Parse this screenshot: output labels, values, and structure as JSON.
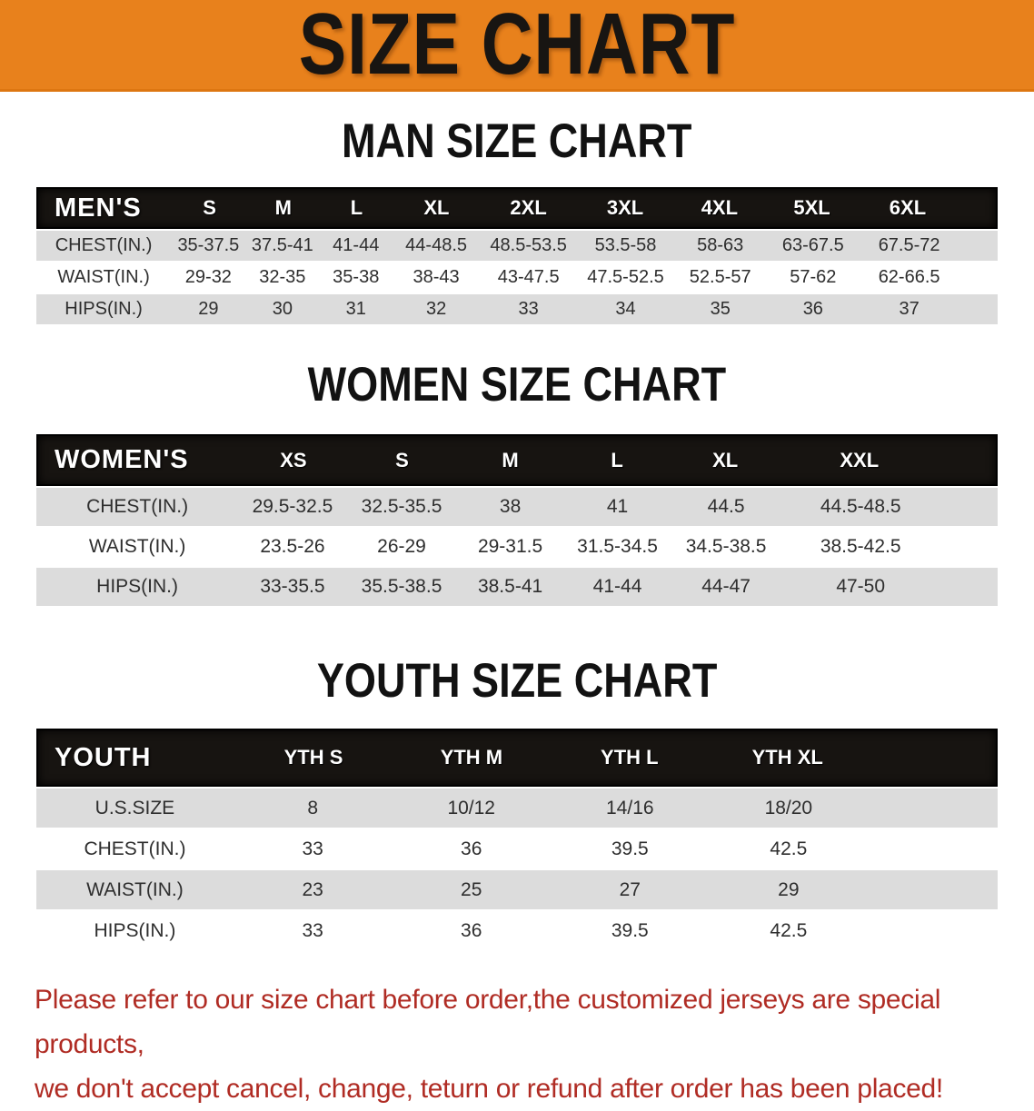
{
  "banner": {
    "title": "SIZE CHART"
  },
  "colors": {
    "banner_bg": "#e8811c",
    "table_header_bar": "#171411",
    "row_shade": "#dcdcdc",
    "footer_text": "#b02c24",
    "header_text": "#ffffff"
  },
  "men": {
    "heading": "MAN SIZE CHART",
    "table": {
      "header_label": "MEN'S",
      "columns": [
        "S",
        "M",
        "L",
        "XL",
        "2XL",
        "3XL",
        "4XL",
        "5XL",
        "6XL"
      ],
      "rows": [
        {
          "label": "CHEST(IN.)",
          "values": [
            "35-37.5",
            "37.5-41",
            "41-44",
            "44-48.5",
            "48.5-53.5",
            "53.5-58",
            "58-63",
            "63-67.5",
            "67.5-72"
          ]
        },
        {
          "label": "WAIST(IN.)",
          "values": [
            "29-32",
            "32-35",
            "35-38",
            "38-43",
            "43-47.5",
            "47.5-52.5",
            "52.5-57",
            "57-62",
            "62-66.5"
          ]
        },
        {
          "label": "HIPS(IN.)",
          "values": [
            "29",
            "30",
            "31",
            "32",
            "33",
            "34",
            "35",
            "36",
            "37"
          ]
        }
      ]
    }
  },
  "women": {
    "heading": "WOMEN SIZE CHART",
    "table": {
      "header_label": "WOMEN'S",
      "columns": [
        "XS",
        "S",
        "M",
        "L",
        "XL",
        "XXL"
      ],
      "rows": [
        {
          "label": "CHEST(IN.)",
          "values": [
            "29.5-32.5",
            "32.5-35.5",
            "38",
            "41",
            "44.5",
            "44.5-48.5"
          ]
        },
        {
          "label": "WAIST(IN.)",
          "values": [
            "23.5-26",
            "26-29",
            "29-31.5",
            "31.5-34.5",
            "34.5-38.5",
            "38.5-42.5"
          ]
        },
        {
          "label": "HIPS(IN.)",
          "values": [
            "33-35.5",
            "35.5-38.5",
            "38.5-41",
            "41-44",
            "44-47",
            "47-50"
          ]
        }
      ]
    }
  },
  "youth": {
    "heading": "YOUTH SIZE CHART",
    "table": {
      "header_label": "YOUTH",
      "columns": [
        "YTH S",
        "YTH M",
        "YTH L",
        "YTH XL"
      ],
      "rows": [
        {
          "label": "U.S.SIZE",
          "values": [
            "8",
            "10/12",
            "14/16",
            "18/20"
          ]
        },
        {
          "label": "CHEST(IN.)",
          "values": [
            "33",
            "36",
            "39.5",
            "42.5"
          ]
        },
        {
          "label": "WAIST(IN.)",
          "values": [
            "23",
            "25",
            "27",
            "29"
          ]
        },
        {
          "label": "HIPS(IN.)",
          "values": [
            "33",
            "36",
            "39.5",
            "42.5"
          ]
        }
      ]
    }
  },
  "footer": {
    "line1": "Please refer to our size chart before order,the customized jerseys are special products,",
    "line2": "we don't accept cancel, change, teturn or refund after order has been placed!"
  }
}
